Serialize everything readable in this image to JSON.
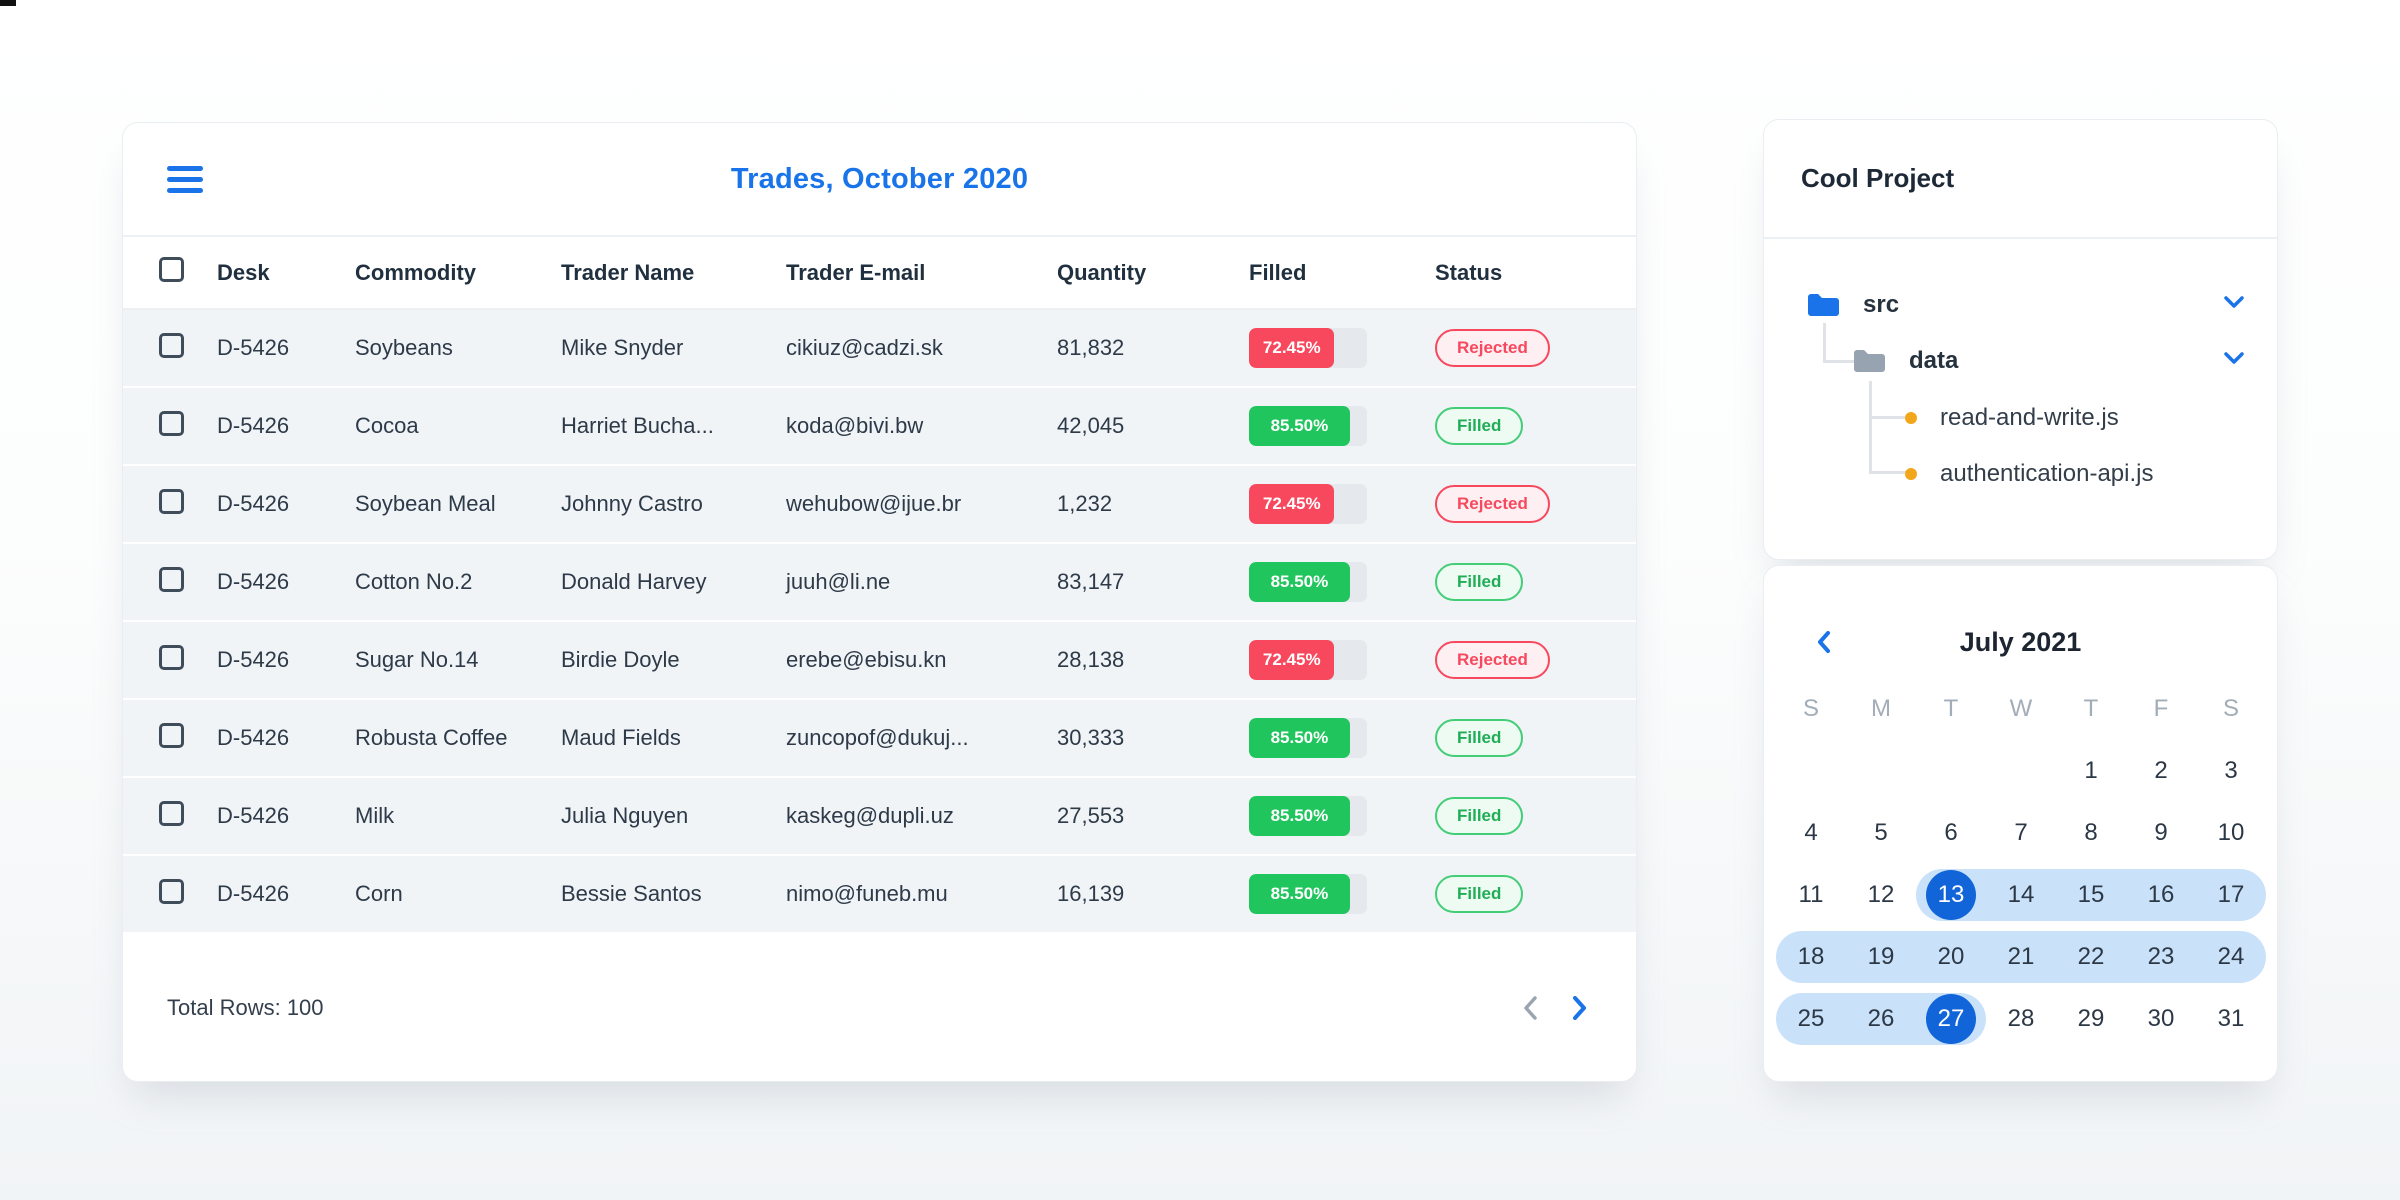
{
  "colors": {
    "accent_blue": "#1a73e8",
    "selected_day_blue": "#1165d8",
    "range_band_blue": "#c9e2fa",
    "status_red": "#f8485e",
    "status_red_bg": "#fef0f2",
    "status_green": "#21c55d",
    "status_green_bg": "#eefbf2",
    "progress_track": "#e5e8ec",
    "row_background": "#f0f4f7"
  },
  "icons": {
    "menu": "hamburger-icon",
    "pager_prev": "chevron-left-icon",
    "pager_next": "chevron-right-icon",
    "tree_expand": "chevron-down-icon",
    "calendar_prev": "chevron-left-icon",
    "folder": "folder-icon",
    "file": "orange-dot-icon"
  },
  "trades": {
    "title": "Trades, October 2020",
    "columns": {
      "desk": "Desk",
      "commodity": "Commodity",
      "trader": "Trader Name",
      "email": "Trader E-mail",
      "quantity": "Quantity",
      "filled": "Filled",
      "status": "Status"
    },
    "rows": [
      {
        "desk": "D-5426",
        "commodity": "Soybeans",
        "trader": "Mike Snyder",
        "email": "cikiuz@cadzi.sk",
        "quantity": "81,832",
        "filled": "72.45%",
        "filled_value": 72.45,
        "status": "Rejected"
      },
      {
        "desk": "D-5426",
        "commodity": "Cocoa",
        "trader": "Harriet Bucha...",
        "email": "koda@bivi.bw",
        "quantity": "42,045",
        "filled": "85.50%",
        "filled_value": 85.5,
        "status": "Filled"
      },
      {
        "desk": "D-5426",
        "commodity": "Soybean Meal",
        "trader": "Johnny Castro",
        "email": "wehubow@ijue.br",
        "quantity": "1,232",
        "filled": "72.45%",
        "filled_value": 72.45,
        "status": "Rejected"
      },
      {
        "desk": "D-5426",
        "commodity": "Cotton No.2",
        "trader": "Donald Harvey",
        "email": "juuh@li.ne",
        "quantity": "83,147",
        "filled": "85.50%",
        "filled_value": 85.5,
        "status": "Filled"
      },
      {
        "desk": "D-5426",
        "commodity": "Sugar No.14",
        "trader": "Birdie Doyle",
        "email": "erebe@ebisu.kn",
        "quantity": "28,138",
        "filled": "72.45%",
        "filled_value": 72.45,
        "status": "Rejected"
      },
      {
        "desk": "D-5426",
        "commodity": "Robusta Coffee",
        "trader": "Maud Fields",
        "email": "zuncopof@dukuj...",
        "quantity": "30,333",
        "filled": "85.50%",
        "filled_value": 85.5,
        "status": "Filled"
      },
      {
        "desk": "D-5426",
        "commodity": "Milk",
        "trader": "Julia Nguyen",
        "email": "kaskeg@dupli.uz",
        "quantity": "27,553",
        "filled": "85.50%",
        "filled_value": 85.5,
        "status": "Filled"
      },
      {
        "desk": "D-5426",
        "commodity": "Corn",
        "trader": "Bessie Santos",
        "email": "nimo@funeb.mu",
        "quantity": "16,139",
        "filled": "85.50%",
        "filled_value": 85.5,
        "status": "Filled"
      }
    ],
    "footer": {
      "total": "Total Rows: 100"
    }
  },
  "project": {
    "title": "Cool Project",
    "tree": [
      {
        "label": "src",
        "type": "folder",
        "folder_color": "blue",
        "expanded": true
      },
      {
        "label": "data",
        "type": "folder",
        "folder_color": "gray",
        "expanded": true
      },
      {
        "label": "read-and-write.js",
        "type": "file"
      },
      {
        "label": "authentication-api.js",
        "type": "file"
      }
    ]
  },
  "calendar": {
    "title": "July 2021",
    "weekdays": [
      "S",
      "M",
      "T",
      "W",
      "T",
      "F",
      "S"
    ],
    "weeks": [
      [
        null,
        null,
        null,
        null,
        1,
        2,
        3
      ],
      [
        4,
        5,
        6,
        7,
        8,
        9,
        10
      ],
      [
        11,
        12,
        13,
        14,
        15,
        16,
        17
      ],
      [
        18,
        19,
        20,
        21,
        22,
        23,
        24
      ],
      [
        25,
        26,
        27,
        28,
        29,
        30,
        31
      ]
    ],
    "range_start": 13,
    "range_end": 27
  }
}
